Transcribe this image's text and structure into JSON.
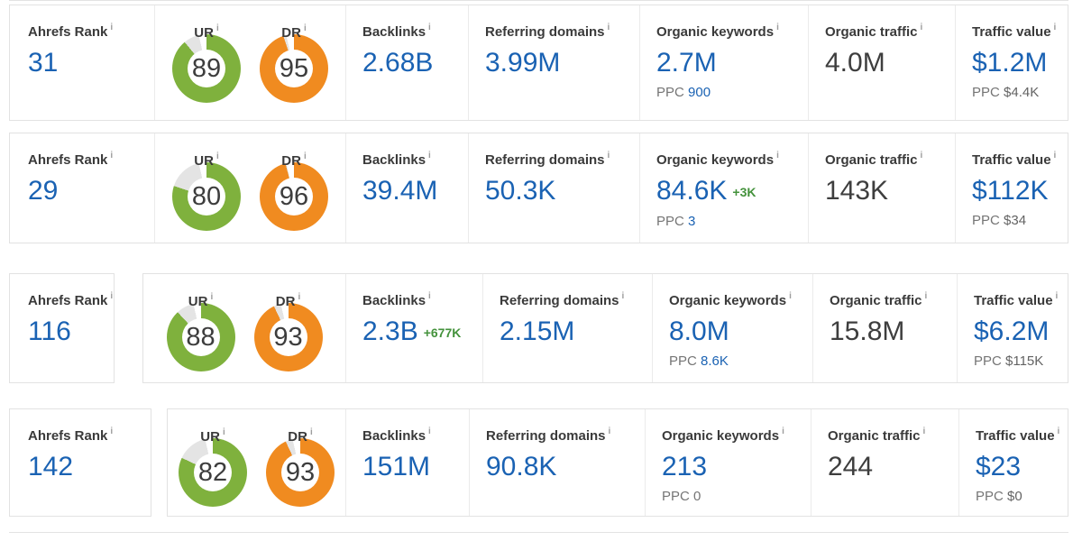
{
  "labels": {
    "ahrefs_rank": "Ahrefs Rank",
    "ur": "UR",
    "dr": "DR",
    "backlinks": "Backlinks",
    "referring_domains": "Referring domains",
    "organic_keywords": "Organic keywords",
    "organic_traffic": "Organic traffic",
    "traffic_value": "Traffic value",
    "ppc": "PPC",
    "info_icon": "i"
  },
  "colors": {
    "value_blue": "#1a62b3",
    "dark_value": "#3e3e3e",
    "gauge_green": "#7fb13d",
    "gauge_orange": "#f08b20",
    "gauge_track_gray": "#e4e4e4",
    "delta_green": "#44923c",
    "ppc_gray": "#757575",
    "card_border": "#e2e2e2"
  },
  "rows": [
    {
      "ahrefs_rank": "31",
      "ur": 89,
      "dr": 95,
      "backlinks": "2.68B",
      "backlinks_delta": "",
      "referring_domains": "3.99M",
      "organic_keywords": "2.7M",
      "keywords_delta": "",
      "keywords_ppc": "900",
      "organic_traffic": "4.0M",
      "traffic_value": "$1.2M",
      "traffic_value_ppc": "$4.4K"
    },
    {
      "ahrefs_rank": "29",
      "ur": 80,
      "dr": 96,
      "backlinks": "39.4M",
      "backlinks_delta": "",
      "referring_domains": "50.3K",
      "organic_keywords": "84.6K",
      "keywords_delta": "+3K",
      "keywords_ppc": "3",
      "organic_traffic": "143K",
      "traffic_value": "$112K",
      "traffic_value_ppc": "$34"
    },
    {
      "ahrefs_rank": "116",
      "ur": 88,
      "dr": 93,
      "backlinks": "2.3B",
      "backlinks_delta": "+677K",
      "referring_domains": "2.15M",
      "organic_keywords": "8.0M",
      "keywords_delta": "",
      "keywords_ppc": "8.6K",
      "organic_traffic": "15.8M",
      "traffic_value": "$6.2M",
      "traffic_value_ppc": "$115K"
    },
    {
      "ahrefs_rank": "142",
      "ur": 82,
      "dr": 93,
      "backlinks": "151M",
      "backlinks_delta": "",
      "referring_domains": "90.8K",
      "organic_keywords": "213",
      "keywords_delta": "",
      "keywords_ppc": "0",
      "organic_traffic": "244",
      "traffic_value": "$23",
      "traffic_value_ppc": "$0"
    }
  ]
}
